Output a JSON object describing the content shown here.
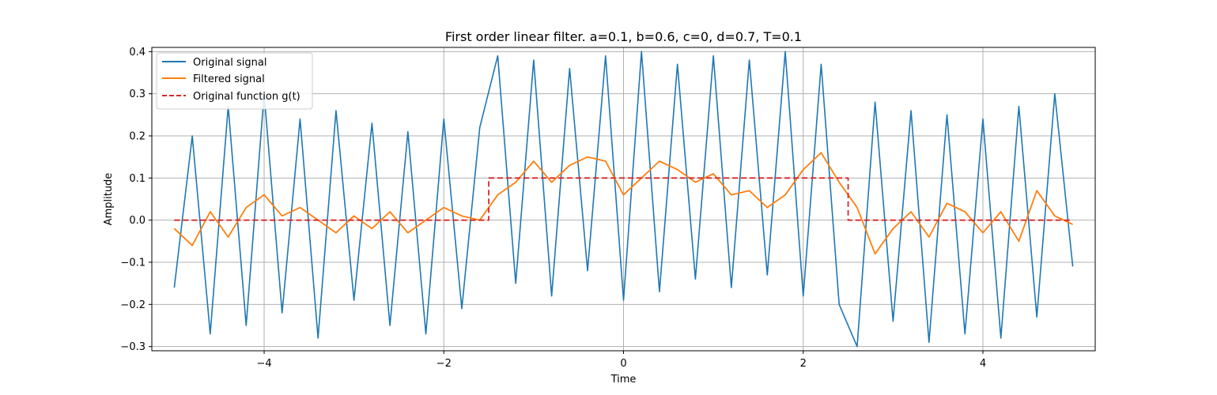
{
  "chart_data": {
    "type": "line",
    "title": "First order linear filter. a=0.1, b=0.6, c=0, d=0.7, T=0.1",
    "xlabel": "Time",
    "ylabel": "Amplitude",
    "xlim": [
      -5.25,
      5.25
    ],
    "ylim": [
      -0.31,
      0.41
    ],
    "xticks": [
      -4,
      -2,
      0,
      2,
      4
    ],
    "xtick_labels": [
      "−4",
      "−2",
      "0",
      "2",
      "4"
    ],
    "yticks": [
      -0.3,
      -0.2,
      -0.1,
      0.0,
      0.1,
      0.2,
      0.3,
      0.4
    ],
    "ytick_labels": [
      "−0.3",
      "−0.2",
      "−0.1",
      "0.0",
      "0.1",
      "0.2",
      "0.3",
      "0.4"
    ],
    "grid": true,
    "legend_position": "top-left",
    "colors": {
      "original": "#1f77b4",
      "filtered": "#ff7f0e",
      "function": "#d62728"
    },
    "series": [
      {
        "name": "Original signal",
        "style": "solid",
        "x": [
          -5.0,
          -4.8,
          -4.6,
          -4.4,
          -4.2,
          -4.0,
          -3.8,
          -3.6,
          -3.4,
          -3.2,
          -3.0,
          -2.8,
          -2.6,
          -2.4,
          -2.2,
          -2.0,
          -1.8,
          -1.6,
          -1.4,
          -1.2,
          -1.0,
          -0.8,
          -0.6,
          -0.4,
          -0.2,
          0.0,
          0.2,
          0.4,
          0.6,
          0.8,
          1.0,
          1.2,
          1.4,
          1.6,
          1.8,
          2.0,
          2.2,
          2.4,
          2.6,
          2.8,
          3.0,
          3.2,
          3.4,
          3.6,
          3.8,
          4.0,
          4.2,
          4.4,
          4.6,
          4.8,
          5.0
        ],
        "values": [
          -0.16,
          0.2,
          -0.27,
          0.27,
          -0.25,
          0.3,
          -0.22,
          0.24,
          -0.28,
          0.26,
          -0.19,
          0.23,
          -0.25,
          0.21,
          -0.27,
          0.24,
          -0.21,
          0.22,
          0.39,
          -0.15,
          0.38,
          -0.18,
          0.36,
          -0.12,
          0.39,
          -0.19,
          0.4,
          -0.17,
          0.37,
          -0.14,
          0.39,
          -0.16,
          0.38,
          -0.13,
          0.4,
          -0.18,
          0.37,
          -0.2,
          -0.3,
          0.28,
          -0.24,
          0.26,
          -0.29,
          0.25,
          -0.27,
          0.24,
          -0.28,
          0.27,
          -0.23,
          0.3,
          -0.11
        ]
      },
      {
        "name": "Filtered signal",
        "style": "solid",
        "x": [
          -5.0,
          -4.8,
          -4.6,
          -4.4,
          -4.2,
          -4.0,
          -3.8,
          -3.6,
          -3.4,
          -3.2,
          -3.0,
          -2.8,
          -2.6,
          -2.4,
          -2.2,
          -2.0,
          -1.8,
          -1.6,
          -1.4,
          -1.2,
          -1.0,
          -0.8,
          -0.6,
          -0.4,
          -0.2,
          0.0,
          0.2,
          0.4,
          0.6,
          0.8,
          1.0,
          1.2,
          1.4,
          1.6,
          1.8,
          2.0,
          2.2,
          2.4,
          2.6,
          2.8,
          3.0,
          3.2,
          3.4,
          3.6,
          3.8,
          4.0,
          4.2,
          4.4,
          4.6,
          4.8,
          5.0
        ],
        "values": [
          -0.02,
          -0.06,
          0.02,
          -0.04,
          0.03,
          0.06,
          0.01,
          0.03,
          0.0,
          -0.03,
          0.01,
          -0.02,
          0.02,
          -0.03,
          0.0,
          0.03,
          0.01,
          0.0,
          0.06,
          0.09,
          0.14,
          0.09,
          0.13,
          0.15,
          0.14,
          0.06,
          0.1,
          0.14,
          0.12,
          0.09,
          0.11,
          0.06,
          0.07,
          0.03,
          0.06,
          0.12,
          0.16,
          0.09,
          0.03,
          -0.08,
          -0.02,
          0.02,
          -0.04,
          0.04,
          0.02,
          -0.03,
          0.02,
          -0.05,
          0.07,
          0.01,
          -0.01
        ]
      },
      {
        "name": "Original function g(t)",
        "style": "dashed",
        "x": [
          -5.0,
          -1.5,
          -1.5,
          2.5,
          2.5,
          5.0
        ],
        "values": [
          0.0,
          0.0,
          0.1,
          0.1,
          0.0,
          0.0
        ]
      }
    ]
  }
}
